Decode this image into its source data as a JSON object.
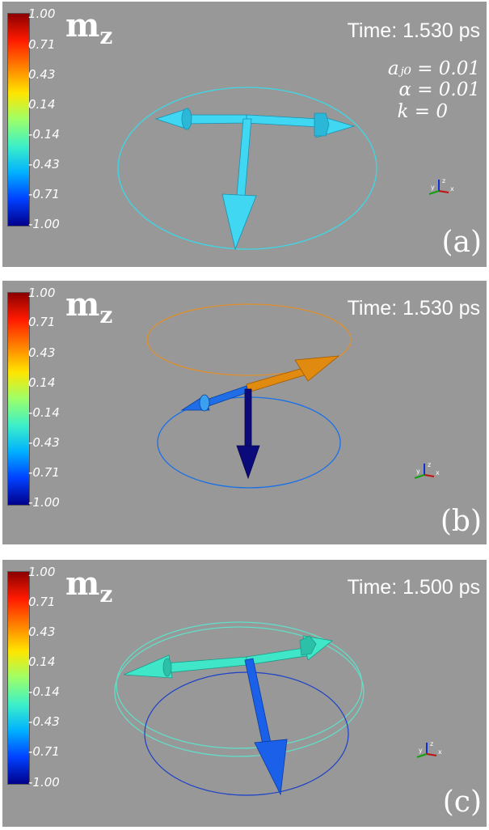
{
  "colorbar": {
    "ticks": [
      "1.00",
      "0.71",
      "0.43",
      "0.14",
      "-0.14",
      "-0.43",
      "-0.71",
      "-1.00"
    ],
    "gradient": [
      "#8b0000",
      "#ff1a00",
      "#ff8000",
      "#ffe600",
      "#9cff6a",
      "#3cf0c8",
      "#00b0ff",
      "#0040ff",
      "#00008b"
    ]
  },
  "panels": [
    {
      "mz_label": "m",
      "mz_sub": "z",
      "time": "Time: 1.530 ps",
      "params": [
        "aⱼ₀ = 0.01",
        "α = 0.01",
        "k = 0"
      ],
      "label": "(a)"
    },
    {
      "mz_label": "m",
      "mz_sub": "z",
      "time": "Time: 1.530 ps",
      "label": "(b)"
    },
    {
      "mz_label": "m",
      "mz_sub": "z",
      "time": "Time: 1.500 ps",
      "label": "(c)"
    }
  ],
  "axes_triad": {
    "x": "x",
    "y": "y",
    "z": "z"
  },
  "colors": {
    "panel_bg": "#989898",
    "cyan_arrow": "#3fd7f2",
    "orange_arrow": "#e08a10",
    "darkblue_arrow": "#0a0a7a",
    "mid_blue_arrow": "#1a6ff0",
    "teal_arrow": "#3fe6c8"
  }
}
